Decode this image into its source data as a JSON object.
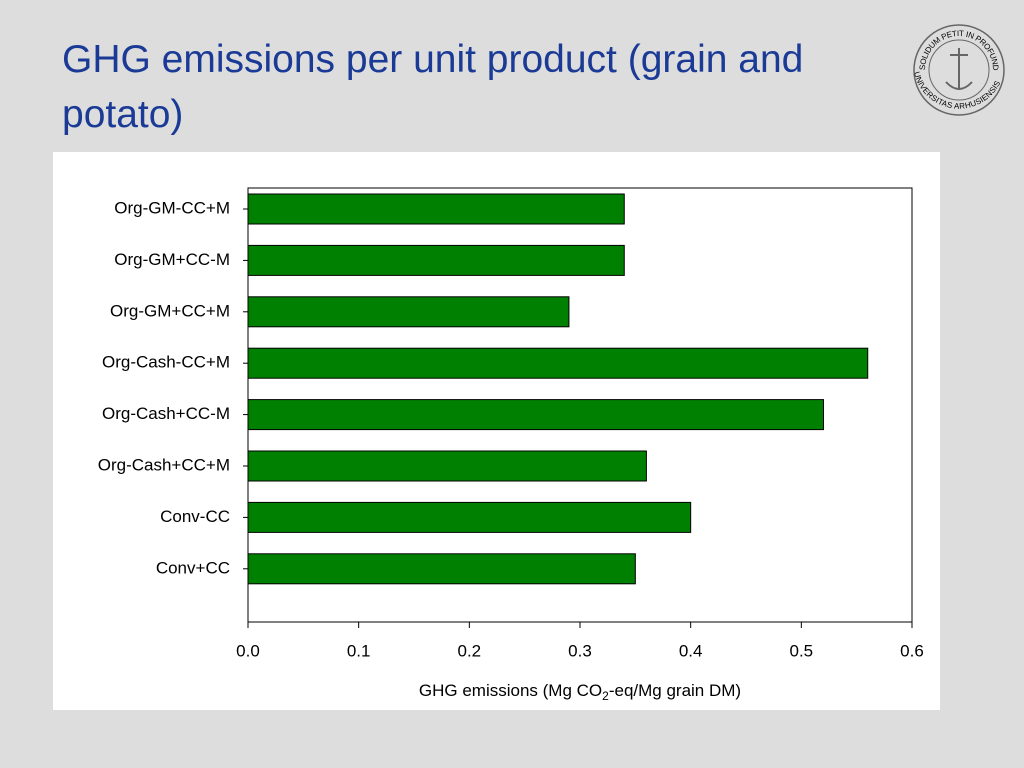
{
  "chart_data": {
    "type": "barh",
    "title": "GHG emissions per unit product (grain and potato)",
    "categories": [
      "Org-GM-CC+M",
      "Org-GM+CC-M",
      "Org-GM+CC+M",
      "Org-Cash-CC+M",
      "Org-Cash+CC-M",
      "Org-Cash+CC+M",
      "Conv-CC",
      "Conv+CC"
    ],
    "values": [
      0.34,
      0.34,
      0.29,
      0.56,
      0.52,
      0.36,
      0.4,
      0.35
    ],
    "color": "#008000",
    "xlim": [
      0,
      0.6
    ],
    "xticks": [
      {
        "value": 0,
        "label": "0.0"
      },
      {
        "value": 0.1,
        "label": "0.1"
      },
      {
        "value": 0.2,
        "label": "0.2"
      },
      {
        "value": 0.3,
        "label": "0.3"
      },
      {
        "value": 0.4,
        "label": "0.4"
      },
      {
        "value": 0.5,
        "label": "0.5"
      },
      {
        "value": 0.6,
        "label": "0.6"
      }
    ],
    "x_label": [
      {
        "text": "GHG emissions (Mg CO"
      },
      {
        "text": "2",
        "sub": true
      },
      {
        "text": "-eq/Mg grain DM)"
      }
    ],
    "grid": false
  },
  "logo": {
    "top_text": "SOLIDUM PETIT IN PROFUNDIS",
    "bottom_text": "UNIVERSITAS ARHUSIENSIS"
  }
}
